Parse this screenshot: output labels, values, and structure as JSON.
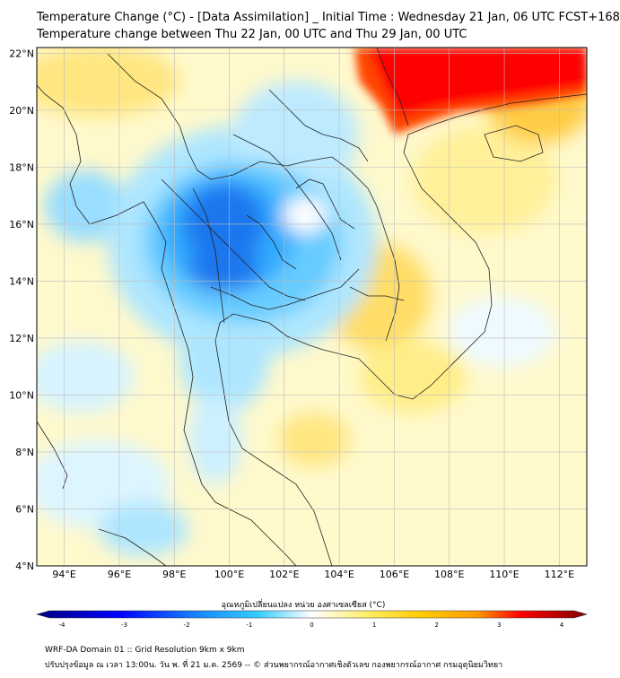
{
  "title": {
    "line1": "Temperature Change (°C) - [Data Assimilation] _ Initial Time : Wednesday 21 Jan, 06 UTC FCST+168",
    "line2": "Temperature change between Thu 22 Jan, 00 UTC and Thu 29 Jan, 00 UTC"
  },
  "map": {
    "lat_labels": [
      "22°N",
      "20°N",
      "18°N",
      "16°N",
      "14°N",
      "12°N",
      "10°N",
      "8°N",
      "6°N",
      "4°N"
    ],
    "lon_labels": [
      "94°E",
      "96°E",
      "98°E",
      "100°E",
      "102°E",
      "104°E",
      "106°E",
      "108°E",
      "110°E",
      "112°E"
    ],
    "lat_values": [
      22,
      20,
      18,
      16,
      14,
      12,
      10,
      8,
      6,
      4
    ],
    "lon_values": [
      94,
      96,
      98,
      100,
      102,
      104,
      106,
      108,
      110,
      112
    ],
    "lon_range": [
      93,
      113
    ],
    "lat_range": [
      4,
      22.2
    ]
  },
  "colorbar": {
    "label": "อุณหภูมิเปลี่ยนแปลง หน่วย องศาเซลเซียส (°C)",
    "ticks": [
      "-4",
      "-3",
      "-2",
      "-1",
      "0",
      "1",
      "2",
      "3",
      "4"
    ],
    "tick_values": [
      -4,
      -3,
      -2,
      -1,
      0,
      1,
      2,
      3,
      4
    ],
    "range": [
      -4,
      4
    ],
    "colors": {
      "min": "#00007f",
      "mid_blue": "#1a8cff",
      "cyan": "#33ccff",
      "white": "#ffffff",
      "yellow": "#ffee66",
      "orange": "#ff9900",
      "red": "#ff0000",
      "max": "#7f0000"
    }
  },
  "footer": {
    "line1": "WRF-DA Domain 01 :: Grid Resolution 9km x 9km",
    "line2": "ปรับปรุงข้อมูล ณ เวลา 13:00น. วัน พ. ที่ 21 ม.ค. 2569 -- © ส่วนพยากรณ์อากาศเชิงตัวเลข กองพยากรณ์อากาศ กรมอุตุนิยมวิทยา"
  }
}
